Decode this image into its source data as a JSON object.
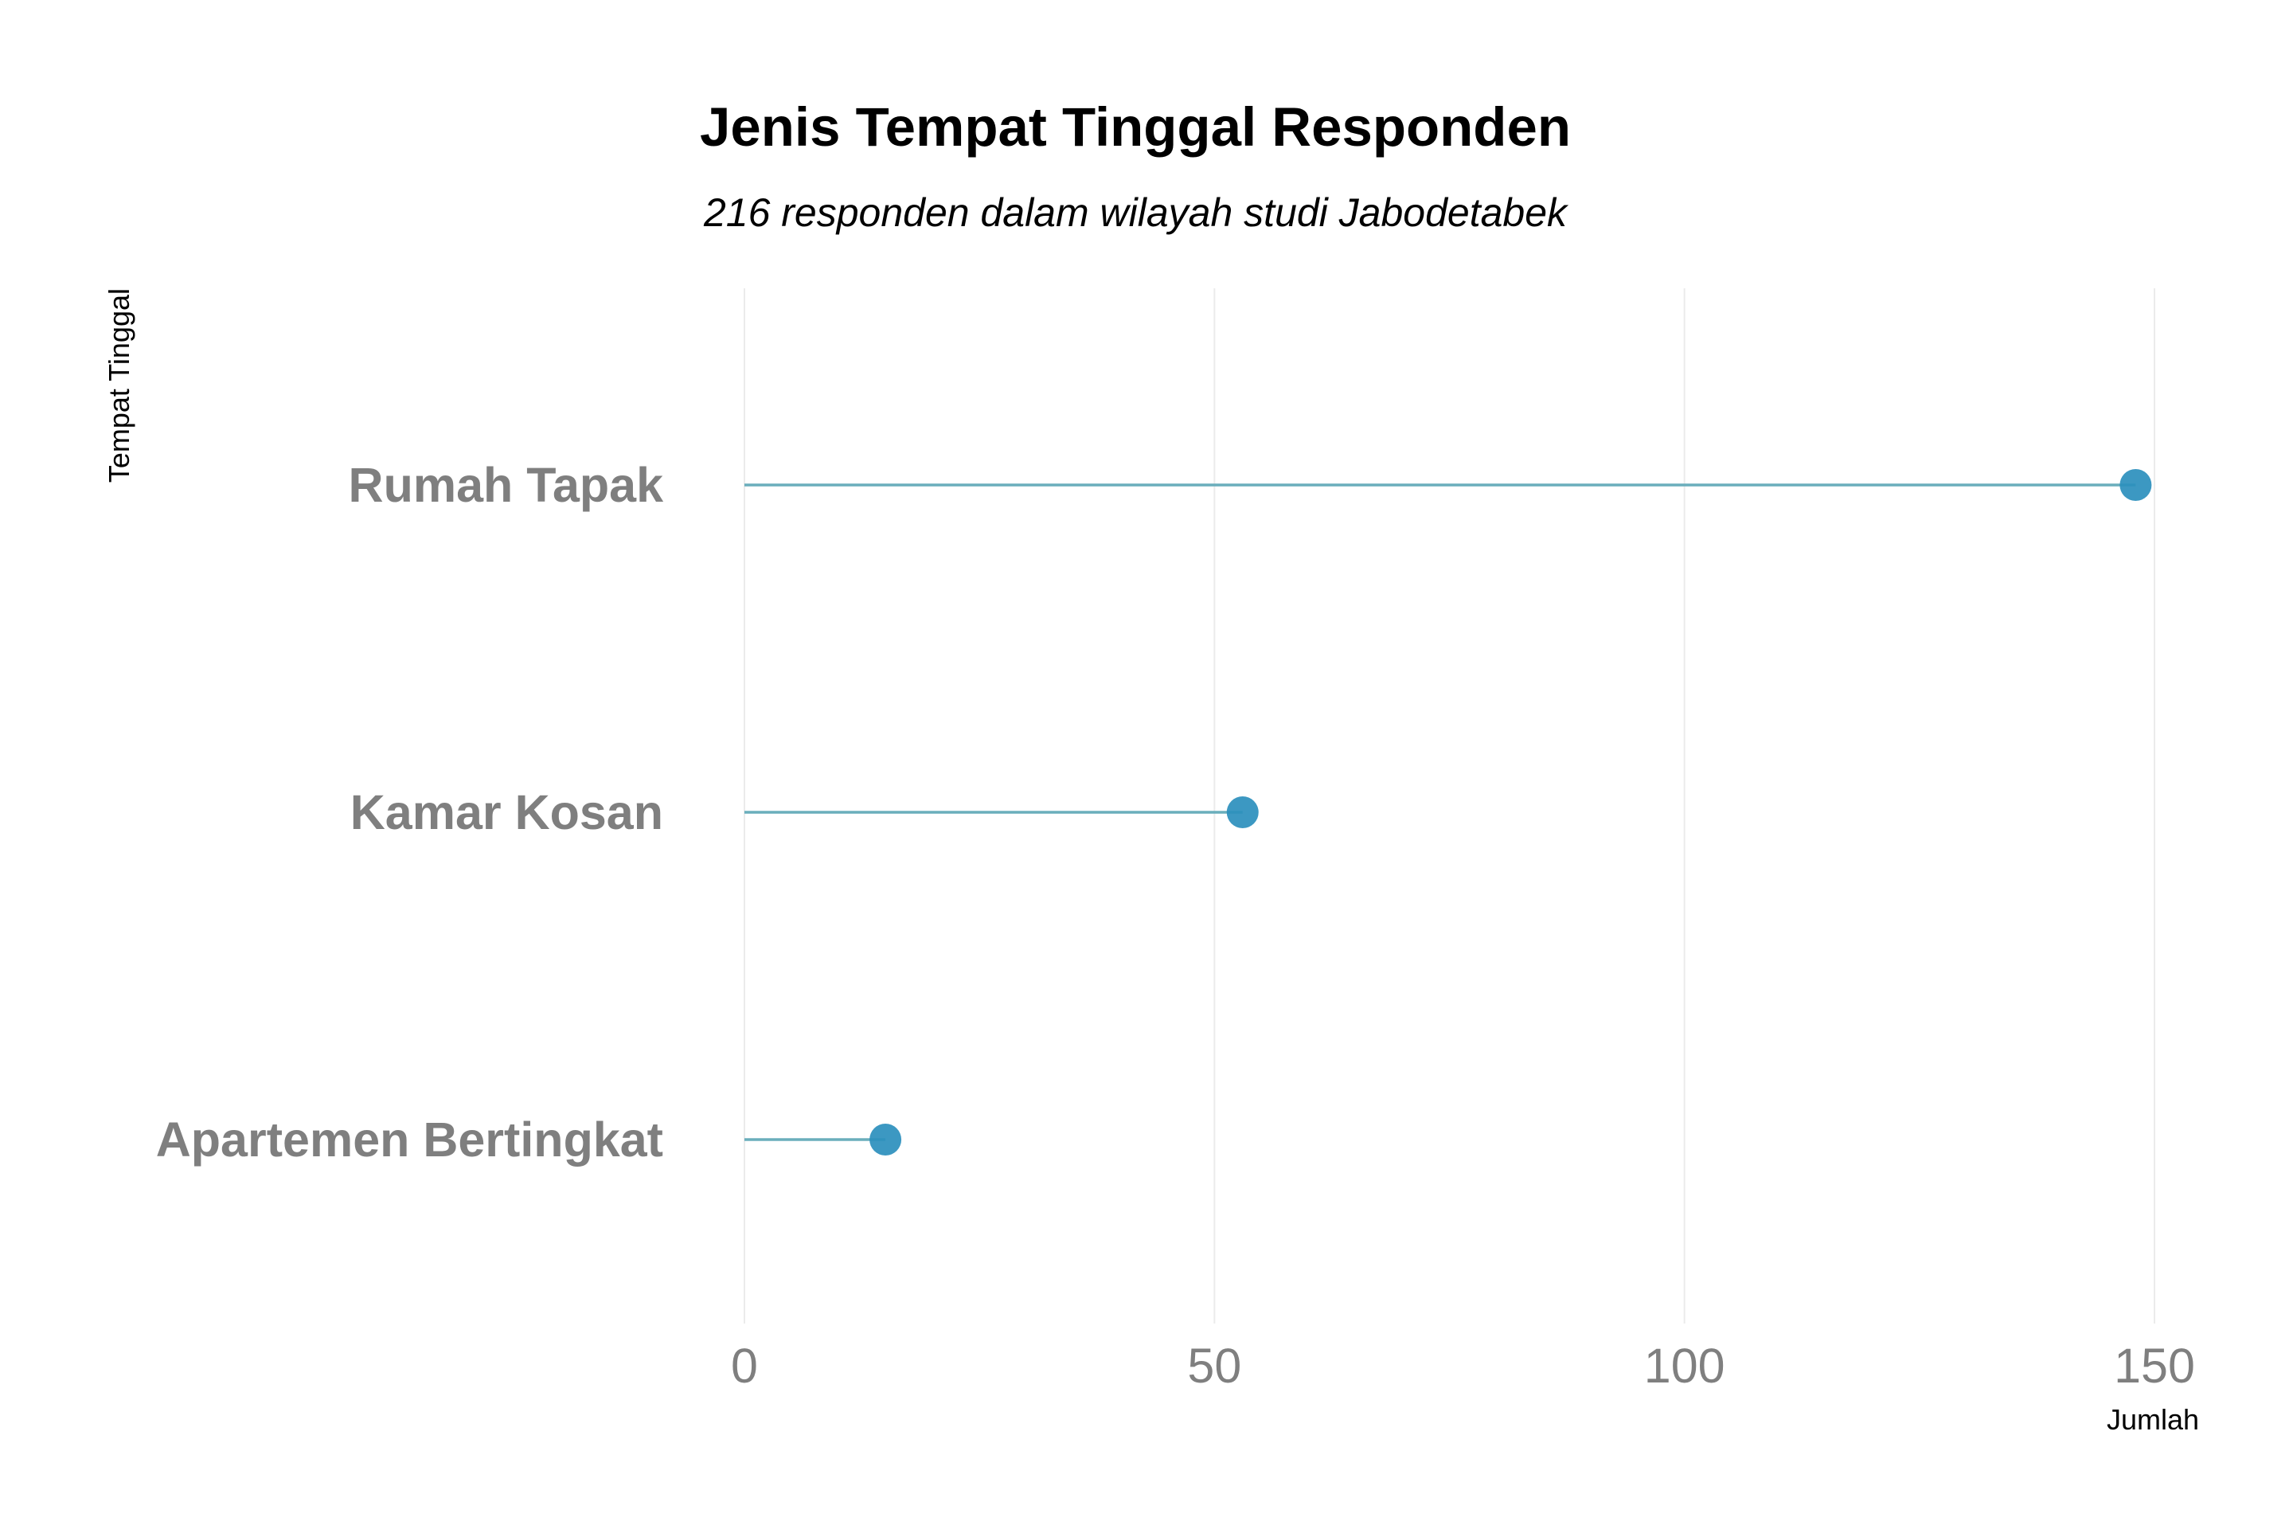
{
  "chart_data": {
    "type": "lollipop",
    "title": "Jenis Tempat Tinggal Responden",
    "subtitle": "216 responden dalam wilayah studi Jabodetabek",
    "xlabel": "Jumlah",
    "ylabel": "Tempat Tinggal",
    "categories": [
      "Rumah Tapak",
      "Kamar Kosan",
      "Apartemen Bertingkat"
    ],
    "values": [
      148,
      53,
      15
    ],
    "xlim": [
      0,
      150
    ],
    "xticks": [
      0,
      50,
      100,
      150
    ],
    "xtick_labels": [
      "0",
      "50",
      "100",
      "150"
    ],
    "grid": true,
    "legend": "none",
    "colors": {
      "stem": "#6aaebc",
      "point": "#2b8fbd"
    }
  }
}
